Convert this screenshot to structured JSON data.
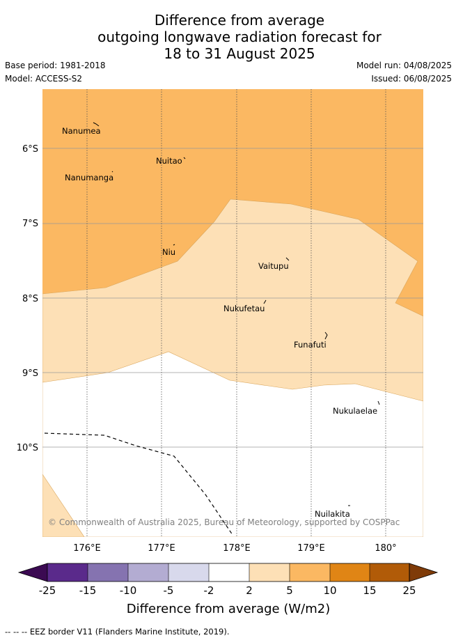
{
  "title": {
    "line1": "Difference from average",
    "line2": "outgoing longwave radiation forecast for",
    "line3": "18 to 31 August 2025"
  },
  "info": {
    "base_period": "Base period: 1981-2018",
    "model": "Model: ACCESS-S2",
    "model_run": "Model run: 04/08/2025",
    "issued": "Issued: 06/08/2025"
  },
  "map": {
    "lat_labels": [
      "6°S",
      "7°S",
      "8°S",
      "9°S",
      "10°S"
    ],
    "lon_labels": [
      "176°E",
      "177°E",
      "178°E",
      "179°E",
      "180°"
    ],
    "places": [
      "Nanumea",
      "Nuitao",
      "Nanumanga",
      "Niu",
      "Vaitupu",
      "Nukufetau",
      "Funafuti",
      "Nukulaelae",
      "Nuilakita"
    ],
    "copyright": "© Commonwealth of Australia 2025, Bureau of Meteorology, supported by COSPPac",
    "colors": {
      "above_5_10": "#fbb862",
      "above_2_5": "#fde0b6",
      "neutral": "#ffffff",
      "eez_line": "#000000"
    }
  },
  "colorbar": {
    "ticks": [
      "-25",
      "-15",
      "-10",
      "-5",
      "-2",
      "2",
      "5",
      "10",
      "15",
      "25"
    ],
    "colors": [
      "#3b0a52",
      "#5a2a8b",
      "#8573b0",
      "#b3acd2",
      "#d8d9ec",
      "#ffffff",
      "#fde0b6",
      "#fbb862",
      "#e08515",
      "#b15b08",
      "#7f3b08"
    ],
    "label": "Difference from average (W/m2)"
  },
  "footer": {
    "legend_symbol": "--  --  --",
    "legend_text": "EEZ border V11 (Flanders Marine Institute, 2019)."
  }
}
